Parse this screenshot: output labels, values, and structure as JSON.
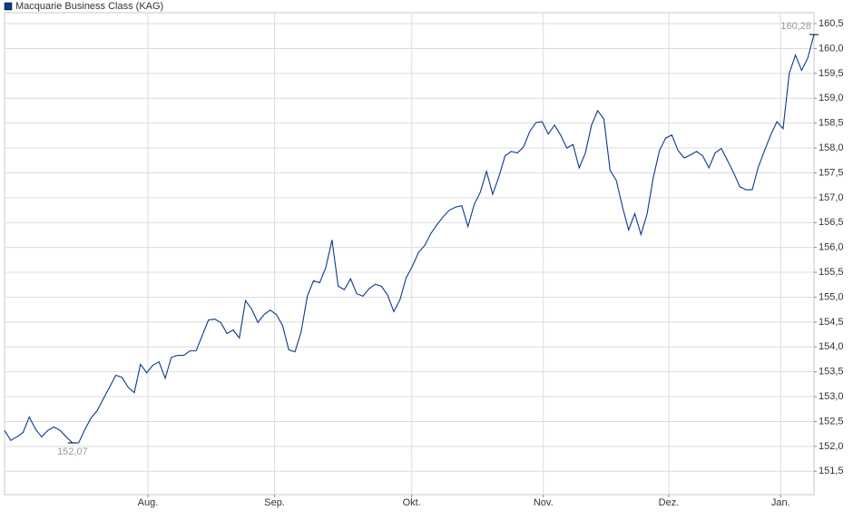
{
  "chart_data": {
    "type": "line",
    "legend": "Macquarie Business Class (KAG)",
    "color": "#0b3a8c",
    "values": [
      152.32,
      152.12,
      152.19,
      152.28,
      152.59,
      152.35,
      152.19,
      152.32,
      152.39,
      152.32,
      152.19,
      152.07,
      152.07,
      152.34,
      152.57,
      152.72,
      152.96,
      153.19,
      153.43,
      153.39,
      153.19,
      153.08,
      153.65,
      153.48,
      153.63,
      153.7,
      153.37,
      153.79,
      153.83,
      153.83,
      153.92,
      153.92,
      154.23,
      154.54,
      154.56,
      154.49,
      154.27,
      154.34,
      154.18,
      154.93,
      154.76,
      154.49,
      154.65,
      154.74,
      154.65,
      154.43,
      153.94,
      153.9,
      154.3,
      155.02,
      155.33,
      155.29,
      155.6,
      156.15,
      155.22,
      155.15,
      155.37,
      155.07,
      155.02,
      155.17,
      155.26,
      155.22,
      155.04,
      154.71,
      154.95,
      155.39,
      155.62,
      155.9,
      156.04,
      156.28,
      156.46,
      156.62,
      156.75,
      156.81,
      156.84,
      156.42,
      156.86,
      157.11,
      157.53,
      157.07,
      157.42,
      157.84,
      157.93,
      157.9,
      158.02,
      158.33,
      158.51,
      158.53,
      158.28,
      158.46,
      158.26,
      158.0,
      158.07,
      157.6,
      157.9,
      158.46,
      158.75,
      158.58,
      157.55,
      157.35,
      156.82,
      156.35,
      156.68,
      156.26,
      156.68,
      157.41,
      157.95,
      158.2,
      158.26,
      157.95,
      157.8,
      157.86,
      157.93,
      157.84,
      157.6,
      157.9,
      157.99,
      157.75,
      157.5,
      157.22,
      157.16,
      157.16,
      157.62,
      157.95,
      158.26,
      158.53,
      158.39,
      159.5,
      159.87,
      159.56,
      159.81,
      160.28
    ],
    "value_labels": [
      null,
      null,
      null,
      null,
      null,
      null,
      null,
      null,
      null,
      null,
      null,
      "152,07",
      null,
      null,
      null,
      null,
      null,
      null,
      null,
      null,
      null,
      null,
      null,
      null,
      null,
      null,
      null,
      null,
      null,
      null,
      null,
      null,
      null,
      null,
      null,
      null,
      null,
      null,
      null,
      null,
      null,
      null,
      null,
      null,
      null,
      null,
      null,
      null,
      null,
      null,
      null,
      null,
      null,
      null,
      null,
      null,
      null,
      null,
      null,
      null,
      null,
      null,
      null,
      null,
      null,
      null,
      null,
      null,
      null,
      null,
      null,
      null,
      null,
      null,
      null,
      null,
      null,
      null,
      null,
      null,
      null,
      null,
      null,
      null,
      null,
      null,
      null,
      null,
      null,
      null,
      null,
      null,
      null,
      null,
      null,
      null,
      null,
      null,
      null,
      null,
      null,
      null,
      null,
      null,
      null,
      null,
      null,
      null,
      null,
      null,
      null,
      null,
      null,
      null,
      null,
      null,
      null,
      null,
      null,
      null,
      null,
      null,
      null,
      null,
      null,
      null,
      null,
      null,
      null,
      null,
      null,
      "160,28"
    ],
    "xlim": [
      0,
      131
    ],
    "xticks": [
      {
        "value": 23.2,
        "label": "Aug."
      },
      {
        "value": 43.7,
        "label": "Sep."
      },
      {
        "value": 65.9,
        "label": "Okt."
      },
      {
        "value": 87.2,
        "label": "Nov."
      },
      {
        "value": 107.5,
        "label": "Dez."
      },
      {
        "value": 125.6,
        "label": "Jan."
      }
    ],
    "ylim": [
      151.03,
      160.72
    ],
    "yticks": [
      {
        "value": 151.5,
        "label": "151,5"
      },
      {
        "value": 152.0,
        "label": "152,0"
      },
      {
        "value": 152.5,
        "label": "152,5"
      },
      {
        "value": 153.0,
        "label": "153,0"
      },
      {
        "value": 153.5,
        "label": "153,5"
      },
      {
        "value": 154.0,
        "label": "154,0"
      },
      {
        "value": 154.5,
        "label": "154,5"
      },
      {
        "value": 155.0,
        "label": "155,0"
      },
      {
        "value": 155.5,
        "label": "155,5"
      },
      {
        "value": 156.0,
        "label": "156,0"
      },
      {
        "value": 156.5,
        "label": "156,5"
      },
      {
        "value": 157.0,
        "label": "157,0"
      },
      {
        "value": 157.5,
        "label": "157,5"
      },
      {
        "value": 158.0,
        "label": "158,0"
      },
      {
        "value": 158.5,
        "label": "158,5"
      },
      {
        "value": 159.0,
        "label": "159,0"
      },
      {
        "value": 159.5,
        "label": "159,5"
      },
      {
        "value": 160.0,
        "label": "160,0"
      },
      {
        "value": 160.5,
        "label": "160,5"
      }
    ],
    "grid": true
  }
}
